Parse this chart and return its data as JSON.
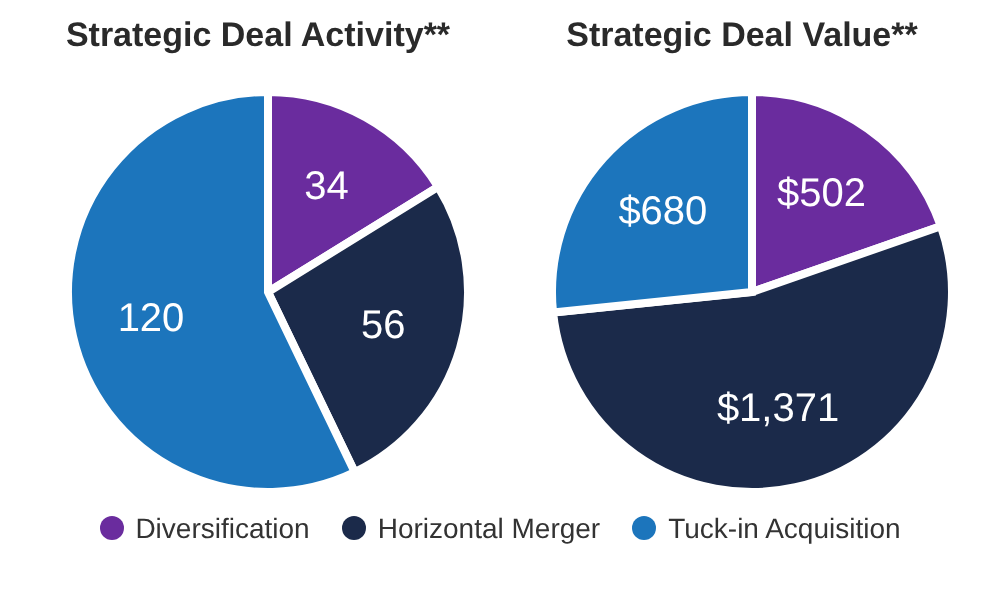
{
  "chart_data": [
    {
      "type": "pie",
      "title": "Strategic Deal Activity**",
      "categories": [
        "Diversification",
        "Horizontal Merger",
        "Tuck-in Acquisition"
      ],
      "values": [
        34,
        56,
        120
      ],
      "colors": [
        "#6a2c9e",
        "#1b2a4a",
        "#1c75bc"
      ],
      "data_labels": true,
      "legend": "bottom"
    },
    {
      "type": "pie",
      "title": "Strategic Deal Value**",
      "categories": [
        null,
        null,
        null
      ],
      "values": [
        502,
        1371,
        680
      ],
      "colors": [
        "#6a2c9e",
        "#1b2a4a",
        "#1c75bc"
      ],
      "value_labels": [
        "$502",
        "$1,371",
        "$680"
      ]
    }
  ]
}
